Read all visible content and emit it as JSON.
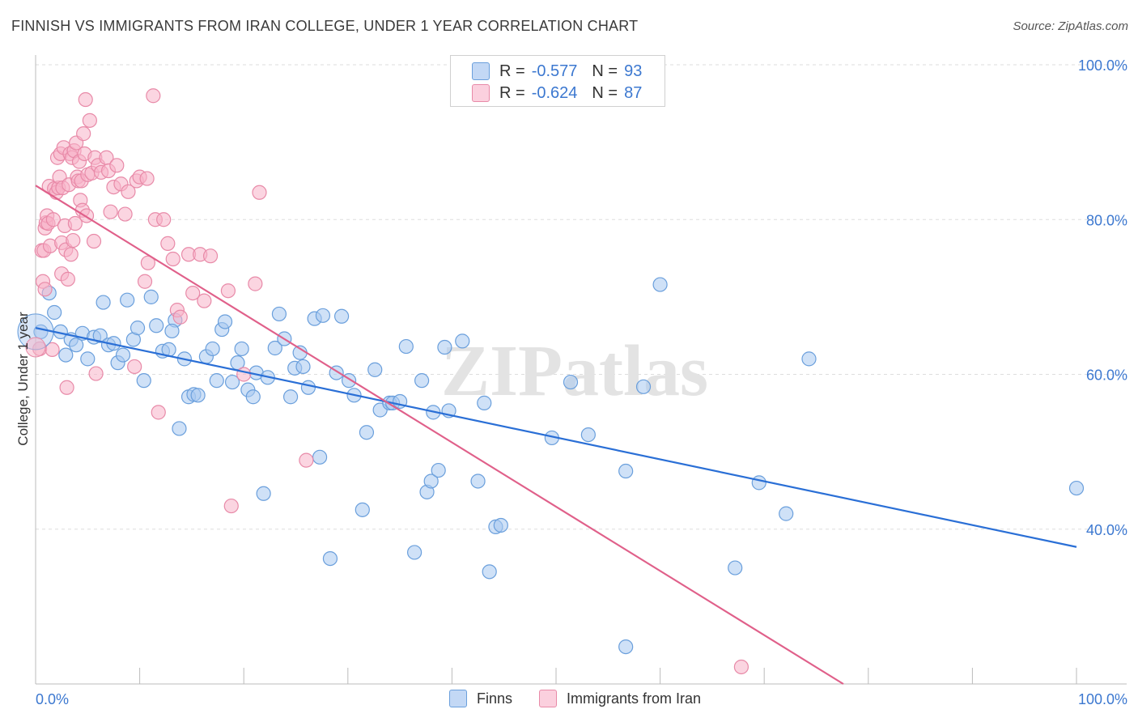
{
  "title": "FINNISH VS IMMIGRANTS FROM IRAN COLLEGE, UNDER 1 YEAR CORRELATION CHART",
  "source": "Source: ZipAtlas.com",
  "watermark": "ZIPatlas",
  "legend": {
    "rows": [
      {
        "r_label": "R =",
        "r_value": "-0.577",
        "n_label": "N =",
        "n_value": "93"
      },
      {
        "r_label": "R =",
        "r_value": "-0.624",
        "n_label": "N =",
        "n_value": "87"
      }
    ]
  },
  "colors": {
    "finns_fill": "#a8c8f0",
    "finns_stroke": "#6a9fdc",
    "finns_line": "#2a6fd6",
    "iran_fill": "#f7b3c8",
    "iran_stroke": "#e88aa8",
    "iran_line": "#e0608a",
    "axis_text": "#3c78d0",
    "grid": "#dddddd"
  },
  "chart_data": {
    "type": "scatter",
    "xlabel": "",
    "ylabel": "College, Under 1 year",
    "xlim": [
      0,
      100
    ],
    "ylim": [
      20,
      100
    ],
    "x_tick_labels": [
      "0.0%",
      "100.0%"
    ],
    "y_ticks": [
      40,
      60,
      80,
      100
    ],
    "y_tick_labels": [
      "40.0%",
      "60.0%",
      "80.0%",
      "100.0%"
    ],
    "grid": true,
    "series": [
      {
        "name": "Finns",
        "trend": {
          "x": [
            0,
            100
          ],
          "y": [
            66.0,
            37.7
          ]
        },
        "points": [
          [
            0.5,
            65.5
          ],
          [
            1.3,
            70.5
          ],
          [
            1.8,
            68.0
          ],
          [
            2.4,
            65.5
          ],
          [
            2.9,
            62.5
          ],
          [
            3.4,
            64.5
          ],
          [
            3.9,
            63.8
          ],
          [
            4.5,
            65.3
          ],
          [
            5.0,
            62.0
          ],
          [
            5.6,
            64.8
          ],
          [
            6.2,
            65.0
          ],
          [
            6.5,
            69.3
          ],
          [
            7.0,
            63.8
          ],
          [
            7.5,
            64.0
          ],
          [
            7.9,
            61.5
          ],
          [
            8.4,
            62.5
          ],
          [
            8.8,
            69.6
          ],
          [
            9.4,
            64.5
          ],
          [
            9.8,
            66.0
          ],
          [
            10.4,
            59.2
          ],
          [
            11.1,
            70.0
          ],
          [
            11.6,
            66.3
          ],
          [
            12.2,
            63.0
          ],
          [
            12.8,
            63.2
          ],
          [
            13.4,
            67.0
          ],
          [
            13.1,
            65.6
          ],
          [
            13.8,
            53.0
          ],
          [
            14.3,
            62.0
          ],
          [
            14.7,
            57.1
          ],
          [
            15.2,
            57.4
          ],
          [
            15.6,
            57.3
          ],
          [
            16.4,
            62.3
          ],
          [
            17.0,
            63.3
          ],
          [
            17.4,
            59.2
          ],
          [
            17.9,
            65.8
          ],
          [
            18.2,
            66.8
          ],
          [
            18.9,
            59.0
          ],
          [
            19.4,
            61.5
          ],
          [
            19.8,
            63.3
          ],
          [
            20.4,
            58.0
          ],
          [
            20.9,
            57.1
          ],
          [
            21.2,
            60.2
          ],
          [
            21.9,
            44.6
          ],
          [
            22.3,
            59.6
          ],
          [
            23.0,
            63.4
          ],
          [
            23.4,
            67.8
          ],
          [
            23.9,
            64.6
          ],
          [
            24.5,
            57.1
          ],
          [
            24.9,
            60.8
          ],
          [
            25.4,
            62.8
          ],
          [
            25.7,
            61.0
          ],
          [
            26.2,
            58.3
          ],
          [
            26.8,
            67.2
          ],
          [
            27.3,
            49.3
          ],
          [
            27.6,
            67.6
          ],
          [
            28.3,
            36.2
          ],
          [
            28.9,
            60.2
          ],
          [
            29.4,
            67.5
          ],
          [
            30.1,
            59.2
          ],
          [
            30.6,
            57.3
          ],
          [
            31.4,
            42.5
          ],
          [
            31.8,
            52.5
          ],
          [
            32.6,
            60.6
          ],
          [
            33.1,
            55.4
          ],
          [
            34.0,
            56.3
          ],
          [
            34.3,
            56.3
          ],
          [
            35.0,
            56.5
          ],
          [
            35.6,
            63.6
          ],
          [
            36.4,
            37.0
          ],
          [
            37.1,
            59.2
          ],
          [
            37.6,
            44.8
          ],
          [
            38.0,
            46.2
          ],
          [
            38.2,
            55.1
          ],
          [
            38.7,
            47.6
          ],
          [
            39.3,
            63.5
          ],
          [
            39.7,
            55.3
          ],
          [
            41.0,
            64.3
          ],
          [
            42.5,
            46.2
          ],
          [
            43.1,
            56.3
          ],
          [
            43.6,
            34.5
          ],
          [
            44.2,
            40.3
          ],
          [
            44.7,
            40.5
          ],
          [
            49.6,
            51.8
          ],
          [
            51.4,
            59.0
          ],
          [
            53.1,
            52.2
          ],
          [
            56.7,
            47.5
          ],
          [
            56.7,
            24.8
          ],
          [
            58.4,
            58.4
          ],
          [
            60.0,
            71.6
          ],
          [
            69.5,
            46.0
          ],
          [
            67.2,
            35.0
          ],
          [
            72.1,
            42.0
          ],
          [
            74.3,
            62.0
          ],
          [
            100.0,
            45.3
          ]
        ]
      },
      {
        "name": "Immigrants from Iran",
        "trend": {
          "x": [
            0,
            77.6
          ],
          "y": [
            84.4,
            20.0
          ]
        },
        "points": [
          [
            0.4,
            63.3
          ],
          [
            0.6,
            76.0
          ],
          [
            0.7,
            72.0
          ],
          [
            0.8,
            76.0
          ],
          [
            0.9,
            71.0
          ],
          [
            0.9,
            78.9
          ],
          [
            1.0,
            79.6
          ],
          [
            1.1,
            80.5
          ],
          [
            1.2,
            79.5
          ],
          [
            1.3,
            84.3
          ],
          [
            1.4,
            76.6
          ],
          [
            1.6,
            63.2
          ],
          [
            1.7,
            80.0
          ],
          [
            1.8,
            84.0
          ],
          [
            2.0,
            83.5
          ],
          [
            2.1,
            88.0
          ],
          [
            2.2,
            84.1
          ],
          [
            2.3,
            85.5
          ],
          [
            2.4,
            88.5
          ],
          [
            2.5,
            77.0
          ],
          [
            2.5,
            73.0
          ],
          [
            2.6,
            84.1
          ],
          [
            2.7,
            89.3
          ],
          [
            2.8,
            79.2
          ],
          [
            2.9,
            76.1
          ],
          [
            3.0,
            58.3
          ],
          [
            3.1,
            72.3
          ],
          [
            3.2,
            84.5
          ],
          [
            3.3,
            88.5
          ],
          [
            3.4,
            75.5
          ],
          [
            3.5,
            88.0
          ],
          [
            3.6,
            77.3
          ],
          [
            3.7,
            88.9
          ],
          [
            3.8,
            79.5
          ],
          [
            3.9,
            89.9
          ],
          [
            4.0,
            85.5
          ],
          [
            4.1,
            85.0
          ],
          [
            4.2,
            87.5
          ],
          [
            4.3,
            82.5
          ],
          [
            4.4,
            85.0
          ],
          [
            4.5,
            81.2
          ],
          [
            4.6,
            91.1
          ],
          [
            4.7,
            88.5
          ],
          [
            4.8,
            95.5
          ],
          [
            4.9,
            80.5
          ],
          [
            5.0,
            85.8
          ],
          [
            5.2,
            92.8
          ],
          [
            5.4,
            86.0
          ],
          [
            5.6,
            77.2
          ],
          [
            5.7,
            88.0
          ],
          [
            5.8,
            60.1
          ],
          [
            6.0,
            87.0
          ],
          [
            6.3,
            86.1
          ],
          [
            6.8,
            88.0
          ],
          [
            7.0,
            86.3
          ],
          [
            7.2,
            81.0
          ],
          [
            7.5,
            84.2
          ],
          [
            7.8,
            87.0
          ],
          [
            8.2,
            84.6
          ],
          [
            8.6,
            80.7
          ],
          [
            8.9,
            83.6
          ],
          [
            9.5,
            61.0
          ],
          [
            9.7,
            85.0
          ],
          [
            10.0,
            85.5
          ],
          [
            10.5,
            72.0
          ],
          [
            10.7,
            85.3
          ],
          [
            10.8,
            74.4
          ],
          [
            11.3,
            96.0
          ],
          [
            11.5,
            80.0
          ],
          [
            11.8,
            55.1
          ],
          [
            12.3,
            80.0
          ],
          [
            12.7,
            76.9
          ],
          [
            13.2,
            74.9
          ],
          [
            13.6,
            68.3
          ],
          [
            13.9,
            67.4
          ],
          [
            14.7,
            75.5
          ],
          [
            15.1,
            70.5
          ],
          [
            15.8,
            75.5
          ],
          [
            16.2,
            69.5
          ],
          [
            16.8,
            75.3
          ],
          [
            18.5,
            70.8
          ],
          [
            18.8,
            43.0
          ],
          [
            20.0,
            60.0
          ],
          [
            21.1,
            71.7
          ],
          [
            21.5,
            83.5
          ],
          [
            26.0,
            48.9
          ],
          [
            67.8,
            22.2
          ]
        ]
      }
    ],
    "legend_position": "top-center"
  }
}
